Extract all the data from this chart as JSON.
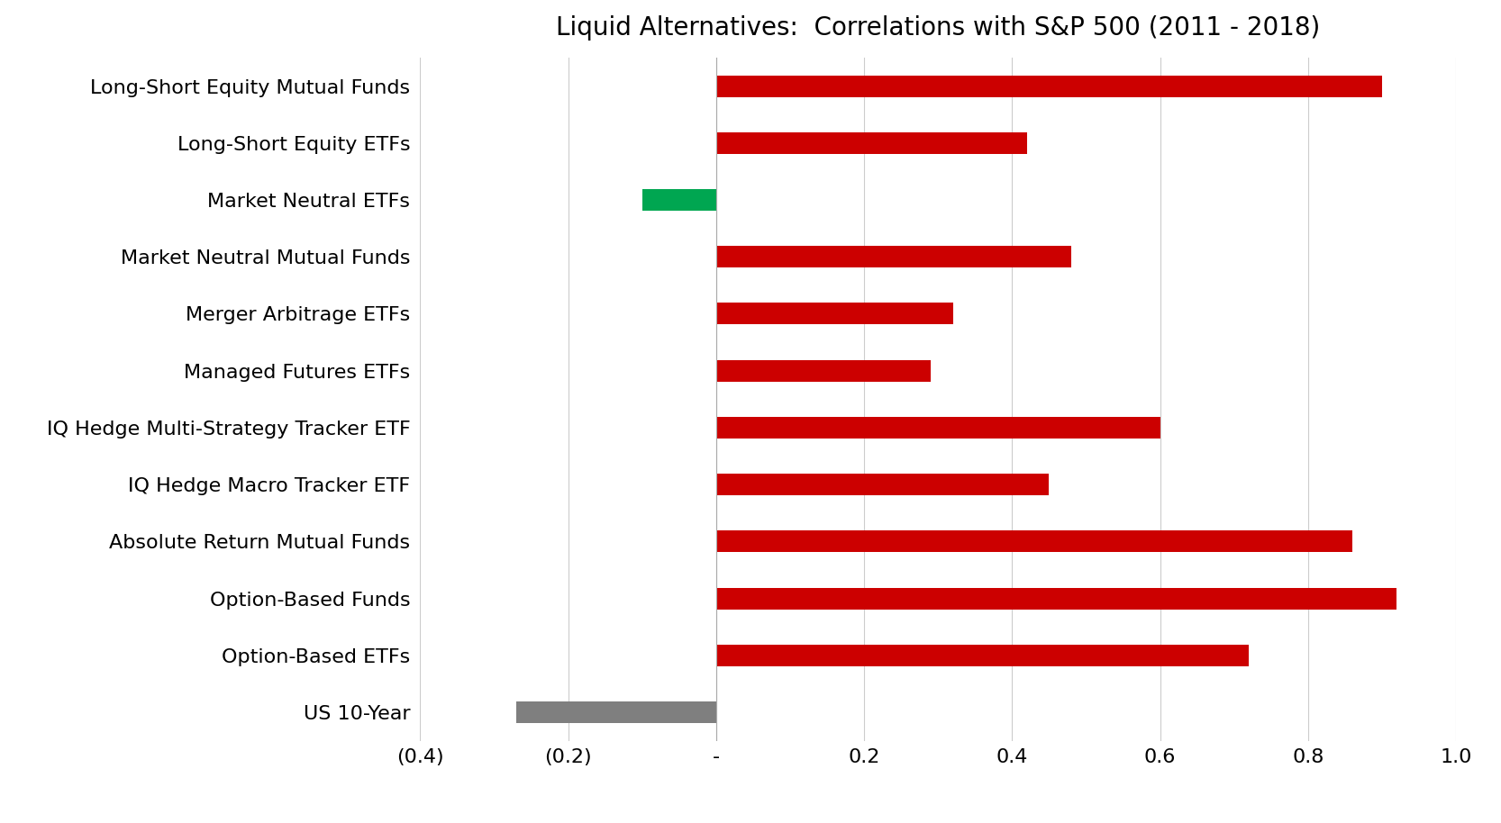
{
  "title": "Liquid Alternatives:  Correlations with S&P 500 (2011 - 2018)",
  "categories": [
    "Long-Short Equity Mutual Funds",
    "Long-Short Equity ETFs",
    "Market Neutral ETFs",
    "Market Neutral Mutual Funds",
    "Merger Arbitrage ETFs",
    "Managed Futures ETFs",
    "IQ Hedge Multi-Strategy Tracker ETF",
    "IQ Hedge Macro Tracker ETF",
    "Absolute Return Mutual Funds",
    "Option-Based Funds",
    "Option-Based ETFs",
    "US 10-Year"
  ],
  "values": [
    0.9,
    0.42,
    -0.1,
    0.48,
    0.32,
    0.29,
    0.6,
    0.45,
    0.86,
    0.92,
    0.72,
    -0.27
  ],
  "colors": [
    "#cc0000",
    "#cc0000",
    "#00a651",
    "#cc0000",
    "#cc0000",
    "#cc0000",
    "#cc0000",
    "#cc0000",
    "#cc0000",
    "#cc0000",
    "#cc0000",
    "#7f7f7f"
  ],
  "xlim": [
    -0.4,
    1.0
  ],
  "xticks": [
    -0.4,
    -0.2,
    0.0,
    0.2,
    0.4,
    0.6,
    0.8,
    1.0
  ],
  "xtick_labels": [
    "(0.4)",
    "(0.2)",
    "-",
    "0.2",
    "0.4",
    "0.6",
    "0.8",
    "1.0"
  ],
  "title_fontsize": 20,
  "label_fontsize": 16,
  "tick_fontsize": 16,
  "bar_height": 0.38,
  "background_color": "#ffffff"
}
